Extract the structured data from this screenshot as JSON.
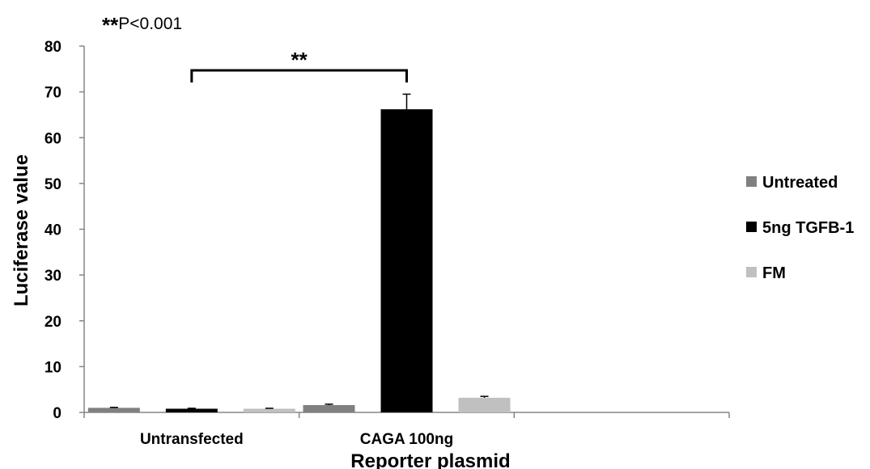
{
  "chart_data": {
    "type": "bar",
    "note": "P<0.001",
    "note_prefix": "**",
    "categories": [
      "Untransfected",
      "CAGA 100ng",
      ""
    ],
    "series": [
      {
        "name": "Untreated",
        "color": "#808080",
        "values": [
          1.0,
          1.6,
          null
        ],
        "errors": [
          0.1,
          0.2,
          null
        ]
      },
      {
        "name": "5ng TGFB-1",
        "color": "#000000",
        "values": [
          0.8,
          66.2,
          null
        ],
        "errors": [
          0.1,
          3.3,
          null
        ]
      },
      {
        "name": "FM",
        "color": "#c0c0c0",
        "values": [
          0.8,
          3.2,
          null
        ],
        "errors": [
          0.1,
          0.3,
          null
        ]
      }
    ],
    "xlabel": "Reporter plasmid",
    "ylabel": "Luciferase value",
    "ylim": [
      0,
      80
    ],
    "yticks": [
      0,
      10,
      20,
      30,
      40,
      50,
      60,
      70,
      80
    ],
    "significance": {
      "label": "**",
      "from_category": 0,
      "to_category": 1
    },
    "legend_position": "right",
    "grid": false
  }
}
